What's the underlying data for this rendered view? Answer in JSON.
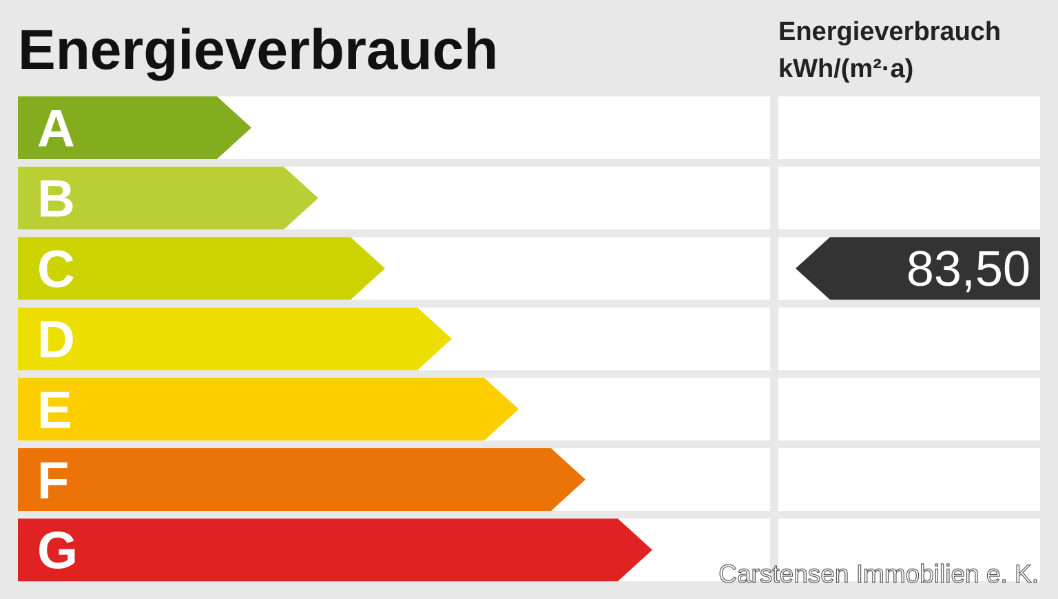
{
  "header": {
    "title": "Energieverbrauch",
    "unit_lines": [
      "Energieverbrauch",
      "kWh/(m²·a)"
    ]
  },
  "classes": [
    {
      "label": "A",
      "color": "#84ac1f"
    },
    {
      "label": "B",
      "color": "#b9cf33"
    },
    {
      "label": "C",
      "color": "#ccd300",
      "value": "83,50"
    },
    {
      "label": "D",
      "color": "#ecdf00"
    },
    {
      "label": "E",
      "color": "#fdcf00"
    },
    {
      "label": "F",
      "color": "#ec7307"
    },
    {
      "label": "G",
      "color": "#e12222"
    }
  ],
  "footer": {
    "credit": "Carstensen Immobilien e. K."
  }
}
